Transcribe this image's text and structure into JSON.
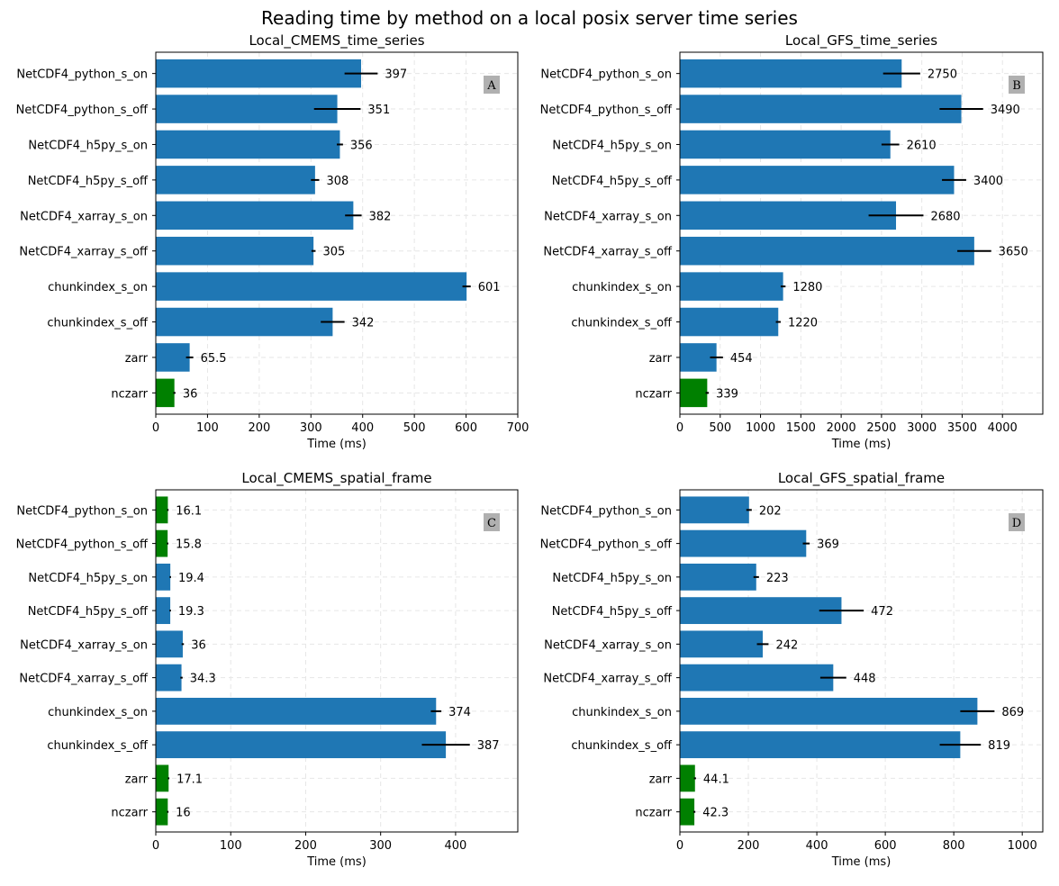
{
  "figure_title": "Reading time by method on a local posix server time series",
  "colors": {
    "default_bar": "#1f77b4",
    "highlight_bar": "#008000",
    "error_bar": "#000000",
    "badge_bg": "#b0b0b0",
    "grid": "#e6e6e6"
  },
  "chart_data": [
    {
      "type": "bar",
      "orientation": "horizontal",
      "title": "Local_CMEMS_time_series",
      "badge": "A",
      "xlabel": "Time (ms)",
      "ylabel": "",
      "xlim": [
        0,
        700
      ],
      "xticks": [
        0,
        100,
        200,
        300,
        400,
        500,
        600,
        700
      ],
      "grid": true,
      "categories": [
        "NetCDF4_python_s_on",
        "NetCDF4_python_s_off",
        "NetCDF4_h5py_s_on",
        "NetCDF4_h5py_s_off",
        "NetCDF4_xarray_s_on",
        "NetCDF4_xarray_s_off",
        "chunkindex_s_on",
        "chunkindex_s_off",
        "zarr",
        "nczarr"
      ],
      "values": [
        397,
        351,
        356,
        308,
        382,
        305,
        601,
        342,
        65.5,
        36
      ],
      "labels": [
        "397",
        "351",
        "356",
        "308",
        "382",
        "305",
        "601",
        "342",
        "65.5",
        "36"
      ],
      "errors": [
        32,
        45,
        6,
        8,
        16,
        4,
        8,
        23,
        7,
        2
      ],
      "highlight": [
        "nczarr"
      ]
    },
    {
      "type": "bar",
      "orientation": "horizontal",
      "title": "Local_GFS_time_series",
      "badge": "B",
      "xlabel": "Time (ms)",
      "ylabel": "",
      "xlim": [
        0,
        4500
      ],
      "xticks": [
        0,
        500,
        1000,
        1500,
        2000,
        2500,
        3000,
        3500,
        4000
      ],
      "grid": true,
      "categories": [
        "NetCDF4_python_s_on",
        "NetCDF4_python_s_off",
        "NetCDF4_h5py_s_on",
        "NetCDF4_h5py_s_off",
        "NetCDF4_xarray_s_on",
        "NetCDF4_xarray_s_off",
        "chunkindex_s_on",
        "chunkindex_s_off",
        "zarr",
        "nczarr"
      ],
      "values": [
        2750,
        3490,
        2610,
        3400,
        2680,
        3650,
        1280,
        1220,
        454,
        339
      ],
      "labels": [
        "2750",
        "3490",
        "2610",
        "3400",
        "2680",
        "3650",
        "1280",
        "1220",
        "454",
        "339"
      ],
      "errors": [
        230,
        270,
        110,
        150,
        340,
        210,
        30,
        30,
        80,
        20
      ],
      "highlight": [
        "nczarr"
      ]
    },
    {
      "type": "bar",
      "orientation": "horizontal",
      "title": "Local_CMEMS_spatial_frame",
      "badge": "C",
      "xlabel": "Time (ms)",
      "ylabel": "",
      "xlim": [
        0,
        483
      ],
      "xticks": [
        0,
        100,
        200,
        300,
        400
      ],
      "grid": true,
      "categories": [
        "NetCDF4_python_s_on",
        "NetCDF4_python_s_off",
        "NetCDF4_h5py_s_on",
        "NetCDF4_h5py_s_off",
        "NetCDF4_xarray_s_on",
        "NetCDF4_xarray_s_off",
        "chunkindex_s_on",
        "chunkindex_s_off",
        "zarr",
        "nczarr"
      ],
      "values": [
        16.1,
        15.8,
        19.4,
        19.3,
        36,
        34.3,
        374,
        387,
        17.1,
        16
      ],
      "labels": [
        "16.1",
        "15.8",
        "19.4",
        "19.3",
        "36",
        "34.3",
        "374",
        "387",
        "17.1",
        "16"
      ],
      "errors": [
        1,
        1,
        1,
        1,
        1.5,
        1.5,
        7,
        32,
        1,
        1
      ],
      "highlight": [
        "NetCDF4_python_s_on",
        "NetCDF4_python_s_off",
        "zarr",
        "nczarr"
      ]
    },
    {
      "type": "bar",
      "orientation": "horizontal",
      "title": "Local_GFS_spatial_frame",
      "badge": "D",
      "xlabel": "Time (ms)",
      "ylabel": "",
      "xlim": [
        0,
        1060
      ],
      "xticks": [
        0,
        200,
        400,
        600,
        800,
        1000
      ],
      "grid": true,
      "categories": [
        "NetCDF4_python_s_on",
        "NetCDF4_python_s_off",
        "NetCDF4_h5py_s_on",
        "NetCDF4_h5py_s_off",
        "NetCDF4_xarray_s_on",
        "NetCDF4_xarray_s_off",
        "chunkindex_s_on",
        "chunkindex_s_off",
        "zarr",
        "nczarr"
      ],
      "values": [
        202,
        369,
        223,
        472,
        242,
        448,
        869,
        819,
        44.1,
        42.3
      ],
      "labels": [
        "202",
        "369",
        "223",
        "472",
        "242",
        "448",
        "869",
        "819",
        "44.1",
        "42.3"
      ],
      "errors": [
        8,
        10,
        8,
        65,
        17,
        38,
        50,
        60,
        3,
        3
      ],
      "highlight": [
        "zarr",
        "nczarr"
      ]
    }
  ]
}
